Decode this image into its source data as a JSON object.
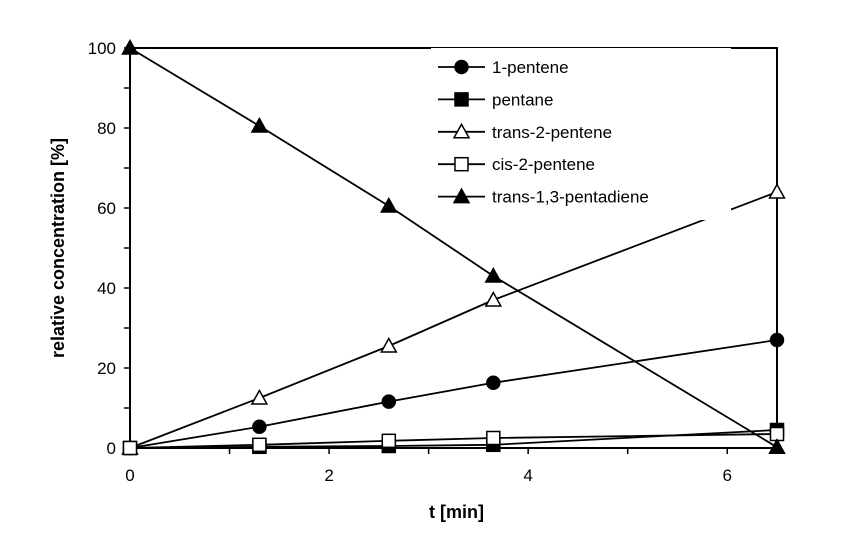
{
  "chart_data": {
    "type": "line",
    "title": "",
    "xlabel": "t [min]",
    "ylabel": "relative concentration [%]",
    "xlim": [
      0,
      6.5
    ],
    "ylim": [
      0,
      100
    ],
    "xticks": [
      0,
      2,
      4,
      6
    ],
    "yticks": [
      0,
      20,
      40,
      60,
      80,
      100
    ],
    "grid": false,
    "legend_position": "top-right",
    "series": [
      {
        "name": "1-pentene",
        "marker": "circle",
        "filled": true,
        "x": [
          0,
          1.3,
          2.6,
          3.65,
          6.5
        ],
        "y": [
          0,
          5.3,
          11.6,
          16.3,
          27.0
        ]
      },
      {
        "name": "pentane",
        "marker": "square",
        "filled": true,
        "x": [
          0,
          1.3,
          2.6,
          3.65,
          6.5
        ],
        "y": [
          0,
          0.3,
          0.5,
          0.8,
          4.5
        ]
      },
      {
        "name": "trans-2-pentene",
        "marker": "triangle",
        "filled": false,
        "x": [
          0,
          1.3,
          2.6,
          3.65,
          6.5
        ],
        "y": [
          0,
          12.5,
          25.5,
          37.0,
          64.0
        ]
      },
      {
        "name": "cis-2-pentene",
        "marker": "square",
        "filled": false,
        "x": [
          0,
          1.3,
          2.6,
          3.65,
          6.5
        ],
        "y": [
          0,
          0.8,
          1.8,
          2.5,
          3.5
        ]
      },
      {
        "name": "trans-1,3-pentadiene",
        "marker": "triangle",
        "filled": true,
        "x": [
          0,
          1.3,
          2.6,
          3.65,
          6.5
        ],
        "y": [
          100,
          80.5,
          60.5,
          43.0,
          0.2
        ]
      }
    ]
  }
}
